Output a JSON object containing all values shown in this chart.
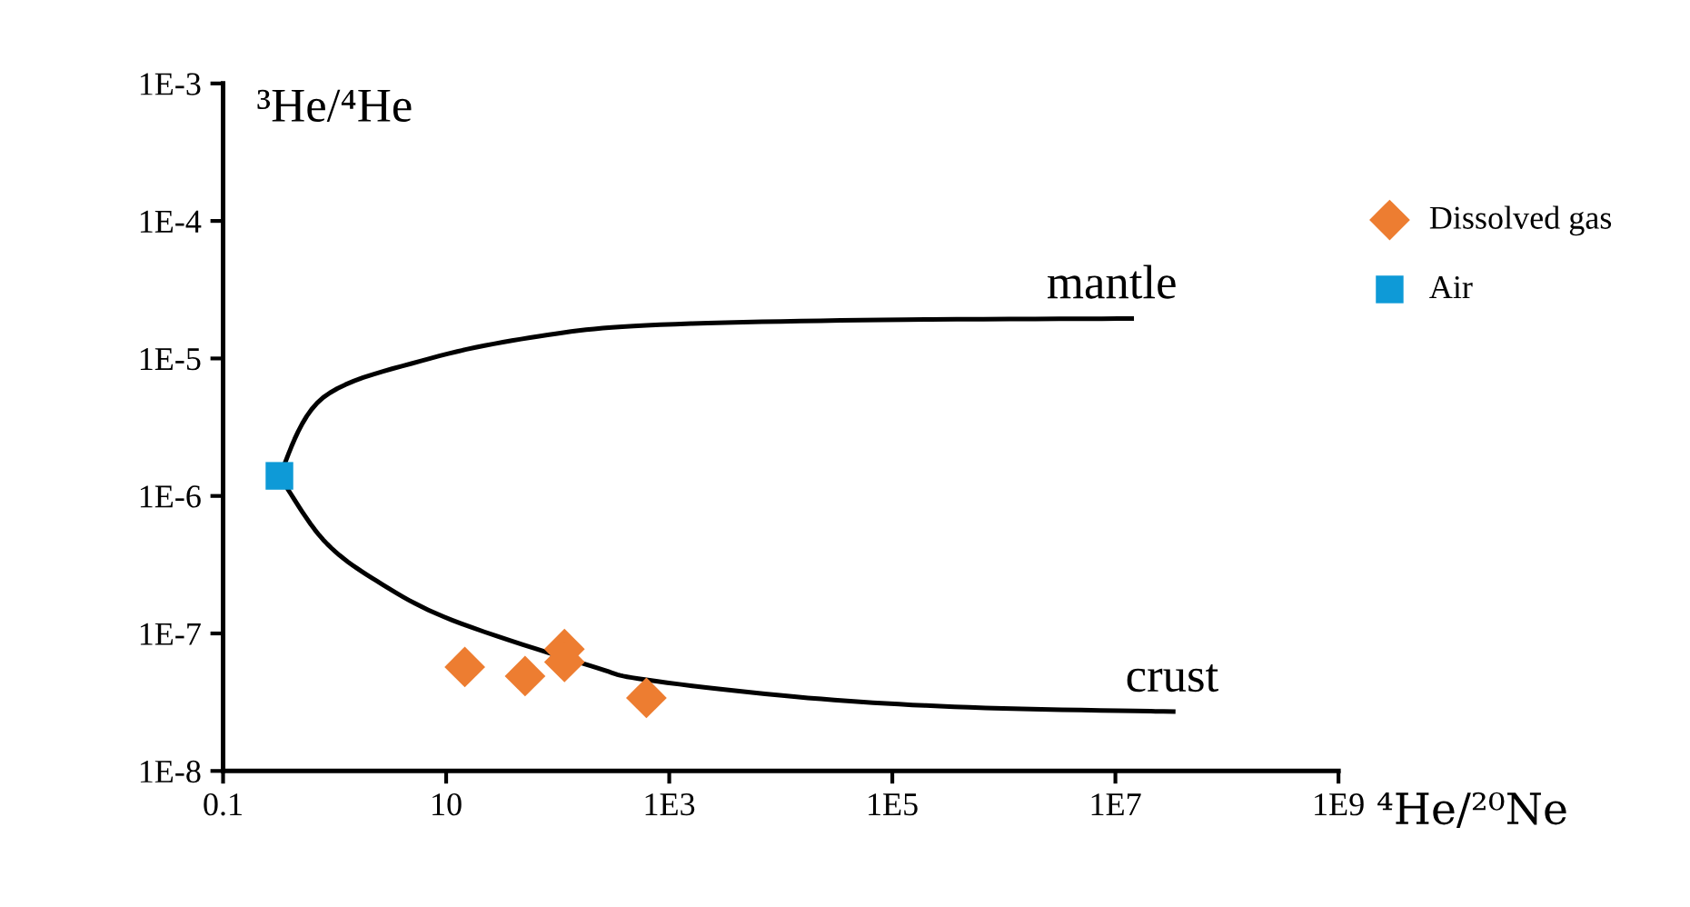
{
  "chart_data": {
    "type": "scatter",
    "xlabel": "⁴He/²⁰Ne",
    "ylabel": "³He/⁴He",
    "log": "xy",
    "grid": false,
    "legend": "right",
    "xlim": [
      0.1,
      1000000000
    ],
    "ylim": [
      1e-08,
      0.001
    ],
    "xticks": [
      0.1,
      10,
      {
        "value": 1000,
        "label": "1E3"
      },
      {
        "value": 100000,
        "label": "1E5"
      },
      {
        "value": 10000000,
        "label": "1E7"
      },
      {
        "value": 1000000000,
        "label": "1E9"
      }
    ],
    "yticks": [
      {
        "value": 1e-08,
        "label": "1E-8"
      },
      {
        "value": 1e-07,
        "label": "1E-7"
      },
      {
        "value": 1e-06,
        "label": "1E-6"
      },
      {
        "value": 1e-05,
        "label": "1E-5"
      },
      {
        "value": 0.0001,
        "label": "1E-4"
      },
      {
        "value": 0.001,
        "label": "1E-3"
      }
    ],
    "series": [
      {
        "type": "line",
        "color": "#000000",
        "marker": "none",
        "line_style": "solid",
        "x": [
          0.32,
          0.79,
          7.2,
          68,
          624,
          52000,
          14000000
        ],
        "values": [
          1.4e-06,
          5.2e-06,
          1e-05,
          1.45e-05,
          1.74e-05,
          1.9e-05,
          1.95e-05
        ]
      },
      {
        "type": "line",
        "color": "#000000",
        "marker": "none",
        "line_style": "solid",
        "x": [
          0.32,
          0.79,
          2.4,
          11.3,
          200,
          624,
          17500,
          490000,
          33000000
        ],
        "values": [
          1.4e-06,
          4.8e-07,
          2.4e-07,
          1.25e-07,
          5.8e-08,
          4.6e-08,
          3.4e-08,
          2.9e-08,
          2.7e-08
        ]
      },
      {
        "name": "Dissolved gas",
        "color": "#ed7d31",
        "marker": "diamond",
        "x": [
          14.7,
          51,
          115,
          115,
          624
        ],
        "values": [
          5.7e-08,
          4.9e-08,
          7.7e-08,
          6.2e-08,
          3.4e-08
        ]
      },
      {
        "name": "Air",
        "color": "#0e9ad7",
        "marker": "square",
        "x": [
          0.32
        ],
        "values": [
          1.4e-06
        ]
      }
    ],
    "annotations": [
      {
        "text": "mantle",
        "x": 14000000,
        "y": 1.95e-05
      },
      {
        "text": "crust",
        "x": 33000000,
        "y": 2.7e-08
      }
    ]
  }
}
